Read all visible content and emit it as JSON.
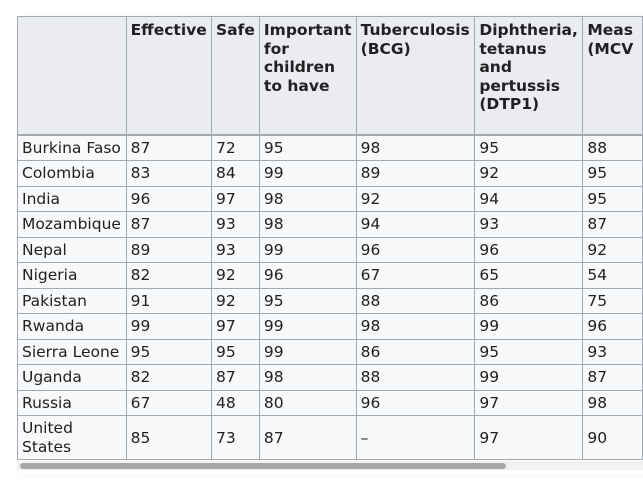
{
  "table": {
    "columns": [
      "",
      "Effective",
      "Safe",
      "Important for children to have",
      "Tuberculosis (BCG)",
      "Diphtheria, tetanus and pertussis (DTP1)",
      "Meas (MCV"
    ],
    "rows": [
      {
        "country": "Burkina Faso",
        "values": [
          "87",
          "72",
          "95",
          "98",
          "95",
          "88"
        ]
      },
      {
        "country": "Colombia",
        "values": [
          "83",
          "84",
          "99",
          "89",
          "92",
          "95"
        ]
      },
      {
        "country": "India",
        "values": [
          "96",
          "97",
          "98",
          "92",
          "94",
          "95"
        ]
      },
      {
        "country": "Mozambique",
        "values": [
          "87",
          "93",
          "98",
          "94",
          "93",
          "87"
        ]
      },
      {
        "country": "Nepal",
        "values": [
          "89",
          "93",
          "99",
          "96",
          "96",
          "92"
        ]
      },
      {
        "country": "Nigeria",
        "values": [
          "82",
          "92",
          "96",
          "67",
          "65",
          "54"
        ]
      },
      {
        "country": "Pakistan",
        "values": [
          "91",
          "92",
          "95",
          "88",
          "86",
          "75"
        ]
      },
      {
        "country": "Rwanda",
        "values": [
          "99",
          "97",
          "99",
          "98",
          "99",
          "96"
        ]
      },
      {
        "country": "Sierra Leone",
        "values": [
          "95",
          "95",
          "99",
          "86",
          "95",
          "93"
        ]
      },
      {
        "country": "Uganda",
        "values": [
          "82",
          "87",
          "98",
          "88",
          "99",
          "87"
        ]
      },
      {
        "country": "Russia",
        "values": [
          "67",
          "48",
          "80",
          "96",
          "97",
          "98"
        ]
      },
      {
        "country": "United States",
        "values": [
          "85",
          "73",
          "87",
          "–",
          "97",
          "90"
        ]
      }
    ]
  },
  "scrollbar": {
    "orientation": "horizontal",
    "position_fraction": 0.0
  },
  "colors": {
    "header_bg": "#eaecf0",
    "cell_bg": "#f8f9fa",
    "border": "#a2a9b1",
    "text": "#202122",
    "scrollbar_thumb": "#a8a8a8"
  }
}
